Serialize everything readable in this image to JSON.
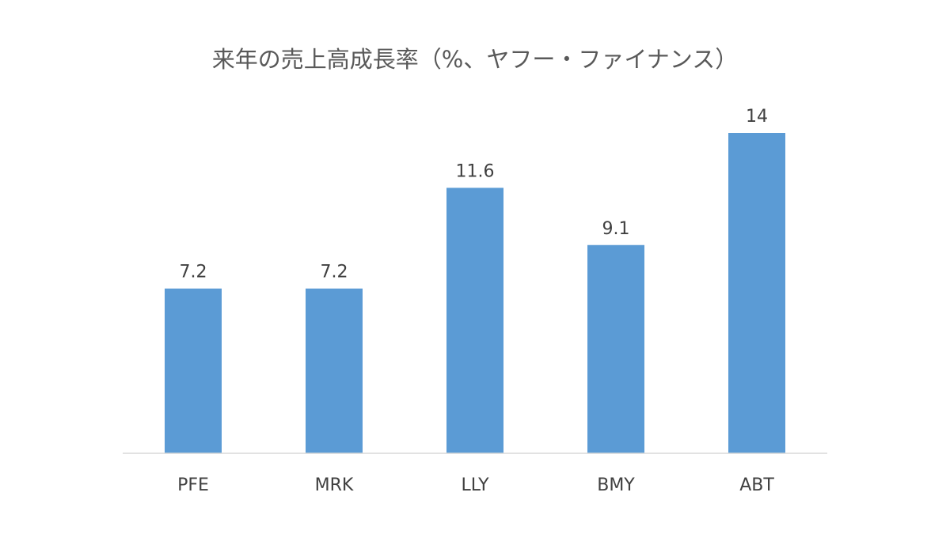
{
  "chart_data": {
    "type": "bar",
    "title": "来年の売上高成長率（%、ヤフー・ファイナンス）",
    "xlabel": "",
    "ylabel": "",
    "categories": [
      "PFE",
      "MRK",
      "LLY",
      "BMY",
      "ABT"
    ],
    "values": [
      7.2,
      7.2,
      11.6,
      9.1,
      14
    ],
    "data_labels": [
      "7.2",
      "7.2",
      "11.6",
      "9.1",
      "14"
    ],
    "ylim": [
      0,
      14
    ],
    "grid": false,
    "legend": "none",
    "colors": {
      "bar": "#5b9bd5",
      "axis": "#d9d9d9",
      "text": "#404040",
      "title": "#595959"
    }
  }
}
